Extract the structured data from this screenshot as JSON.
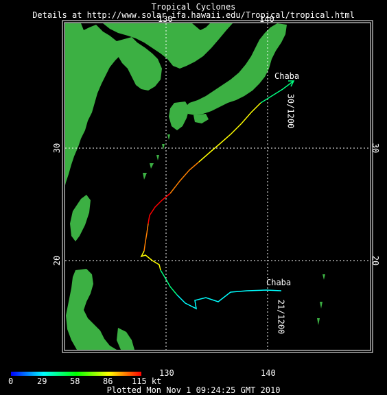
{
  "header": {
    "title": "Tropical Cyclones",
    "details": "Details at http://www.solar.ifa.hawaii.edu/Tropical/tropical.html"
  },
  "axes": {
    "lon_ticks": [
      "130",
      "140"
    ],
    "lat_ticks": [
      "30",
      "20"
    ],
    "lon_range": [
      121,
      150
    ],
    "lat_range": [
      12.5,
      41.5
    ]
  },
  "storm": {
    "name_start": "Chaba",
    "date_start": "21/1200",
    "name_end": "Chaba",
    "date_end": "30/1200"
  },
  "colorbar": {
    "labels": [
      "0",
      "29",
      "58",
      "86",
      "115 kt"
    ],
    "colors": [
      "#0000ff",
      "#00ffff",
      "#00ff00",
      "#ffff00",
      "#ff0000"
    ]
  },
  "footer": {
    "plotted": "Plotted Mon Nov  1 09:24:25 GMT 2010"
  },
  "colors": {
    "land": "#3cb043",
    "grid": "#ffffff",
    "frame": "#ffffff"
  }
}
